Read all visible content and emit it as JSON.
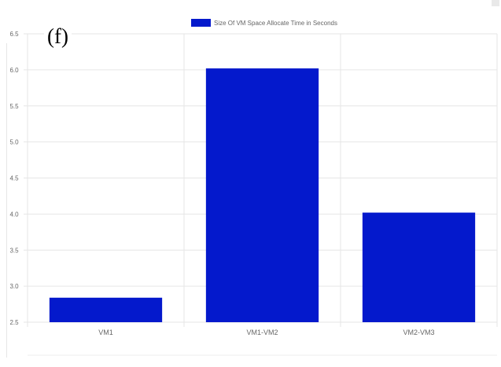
{
  "figure": {
    "panel_label": "(f)"
  },
  "chart_data": {
    "type": "bar",
    "title": "",
    "xlabel": "",
    "ylabel": "",
    "categories": [
      "VM1",
      "VM1-VM2",
      "VM2-VM3"
    ],
    "series": [
      {
        "name": "Size Of VM Space Allocate Time in Seconds",
        "values": [
          2.84,
          6.02,
          4.02
        ],
        "color": "#0419cc"
      }
    ],
    "ylim": [
      2.5,
      6.5
    ],
    "yticks": [
      "2.5",
      "3.0",
      "3.5",
      "4.0",
      "4.5",
      "5.0",
      "5.5",
      "6.0",
      "6.5"
    ],
    "grid": true,
    "legend_position": "top-center"
  }
}
